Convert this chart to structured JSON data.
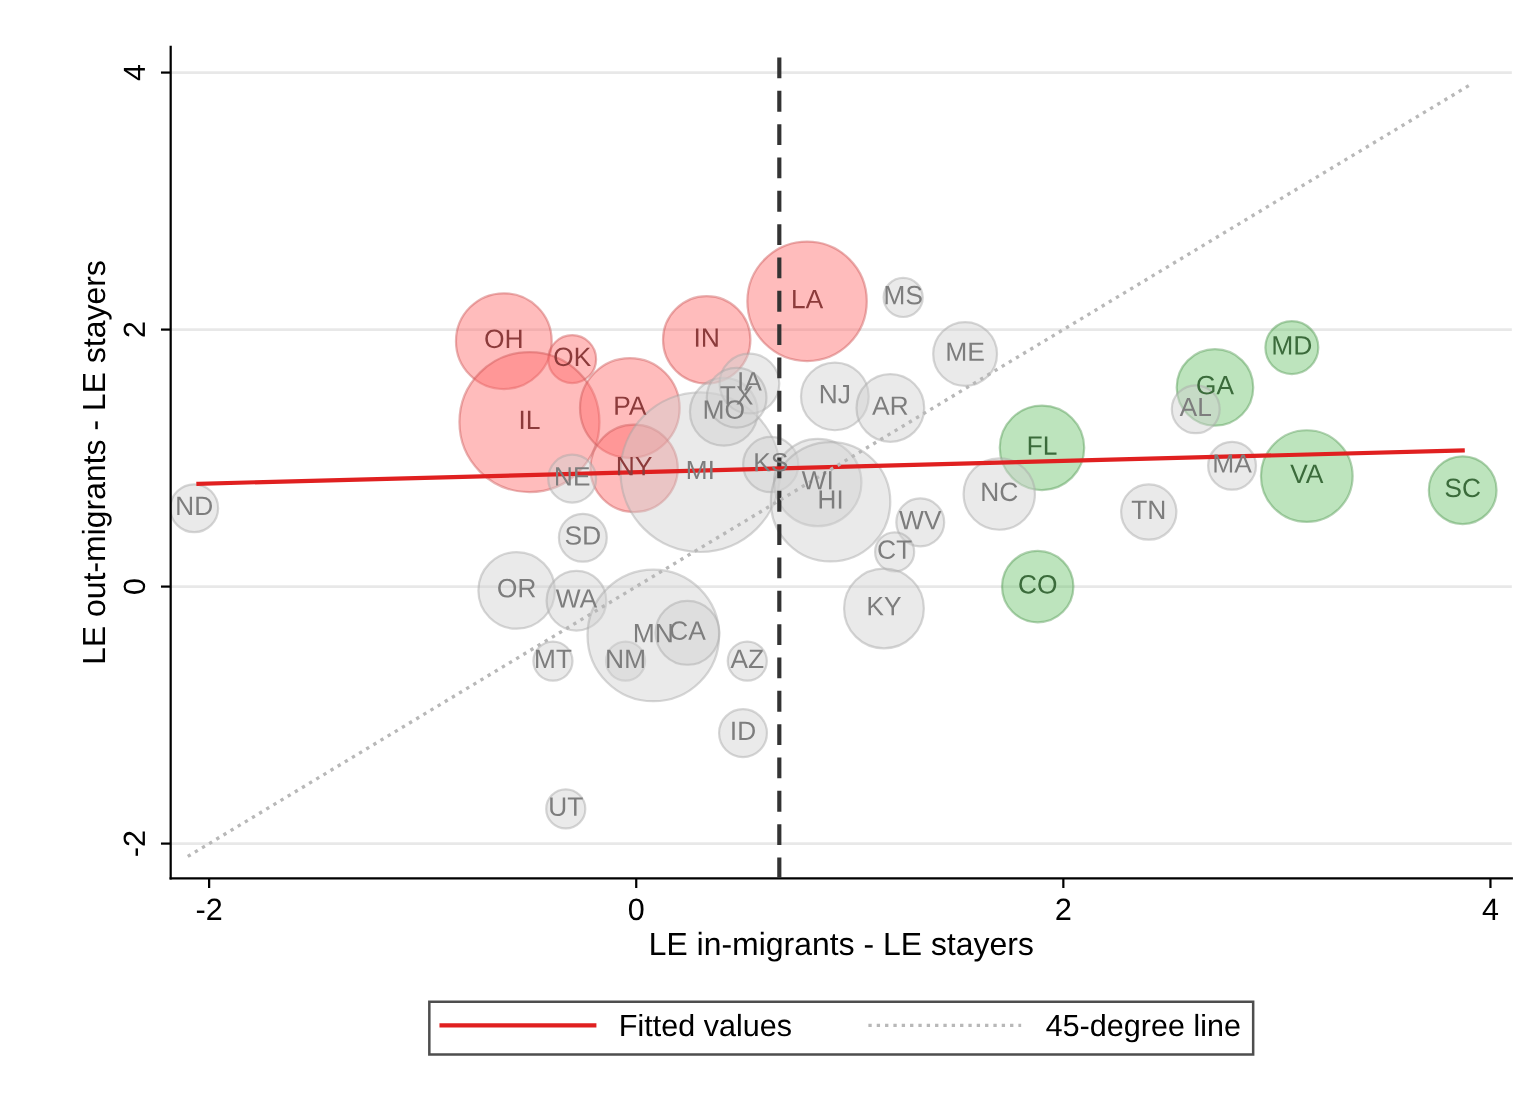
{
  "chart_data": {
    "type": "bubble",
    "xlabel": "LE in-migrants - LE stayers",
    "ylabel": "LE out-migrants - LE stayers",
    "xlim": [
      -2.18,
      4.1
    ],
    "ylim": [
      -2.27,
      4.2
    ],
    "xticks": [
      -2,
      0,
      2,
      4
    ],
    "yticks": [
      -2,
      0,
      2,
      4
    ],
    "grid": "y",
    "legend": "bottom",
    "ref_lines": [
      {
        "axis": "x",
        "value": 0.67,
        "color": "#333333",
        "line_style": "dashed"
      }
    ],
    "series": [
      {
        "color": "#ff6b6b",
        "x": [
          -0.62,
          -0.3,
          -0.5,
          -0.03,
          -0.01,
          0.33,
          0.8
        ],
        "values": [
          1.91,
          1.77,
          1.28,
          1.39,
          0.92,
          1.92,
          2.22
        ],
        "sizes": [
          0.36,
          0.09,
          0.77,
          0.39,
          0.3,
          0.3,
          0.56
        ],
        "value_labels": [
          "OH",
          "OK",
          "IL",
          "PA",
          "NY",
          "IN",
          "LA"
        ]
      },
      {
        "color": "#6cc36c",
        "x": [
          1.9,
          1.88,
          2.71,
          3.07,
          3.14,
          3.87
        ],
        "values": [
          1.08,
          0.0,
          1.55,
          1.86,
          0.86,
          0.75
        ],
        "sizes": [
          0.28,
          0.2,
          0.23,
          0.11,
          0.33,
          0.18
        ],
        "value_labels": [
          "FL",
          "CO",
          "GA",
          "MD",
          "VA",
          "SC"
        ]
      },
      {
        "color": "#d0d0d0",
        "x": [
          -2.07,
          -0.3,
          -0.25,
          -0.56,
          -0.28,
          -0.39,
          -0.05,
          0.08,
          0.24,
          0.52,
          0.5,
          -0.33,
          0.3,
          0.41,
          0.53,
          0.47,
          0.63,
          0.93,
          1.19,
          1.25,
          1.54,
          0.85,
          0.91,
          1.33,
          1.21,
          1.7,
          1.16,
          2.62,
          2.79,
          2.4
        ],
        "values": [
          0.61,
          0.84,
          0.38,
          -0.03,
          -0.11,
          -0.58,
          -0.58,
          -0.38,
          -0.36,
          -0.58,
          -1.14,
          -1.73,
          0.89,
          1.36,
          1.58,
          1.47,
          0.95,
          1.48,
          1.39,
          2.25,
          1.81,
          0.81,
          0.66,
          0.5,
          0.27,
          0.72,
          -0.17,
          1.38,
          0.94,
          0.58
        ],
        "sizes": [
          0.09,
          0.09,
          0.09,
          0.23,
          0.14,
          0.06,
          0.06,
          0.68,
          0.16,
          0.06,
          0.09,
          0.06,
          1,
          0.18,
          0.14,
          0.14,
          0.12,
          0.18,
          0.18,
          0.06,
          0.16,
          0.3,
          0.56,
          0.09,
          0.06,
          0.2,
          0.25,
          0.09,
          0.09,
          0.12
        ],
        "value_labels": [
          "ND",
          "NE",
          "SD",
          "OR",
          "WA",
          "MT",
          "NM",
          "MN",
          "CA",
          "AZ",
          "ID",
          "UT",
          "MI",
          "MO",
          "IA",
          "TX",
          "KS",
          "NJ",
          "AR",
          "MS",
          "ME",
          "WI",
          "HI",
          "WV",
          "CT",
          "NC",
          "KY",
          "AL",
          "MA",
          "TN"
        ]
      },
      {
        "type": "line",
        "name": "Fitted values",
        "color": "#e02020",
        "x": [
          -2.05,
          3.87
        ],
        "values": [
          0.8,
          1.06
        ]
      },
      {
        "type": "line",
        "name": "45-degree line",
        "color": "#b8b8b8",
        "line_style": "dotted",
        "x": [
          -2.1,
          3.9
        ],
        "values": [
          -2.1,
          3.9
        ]
      }
    ]
  }
}
